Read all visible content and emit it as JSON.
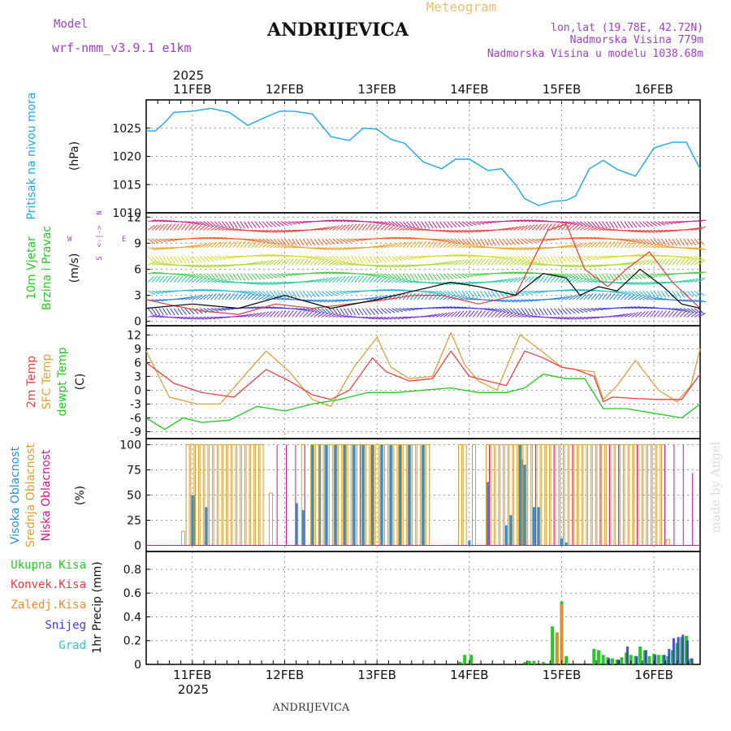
{
  "header": {
    "model_label": "Model",
    "model_name": "wrf-nmm_v3.9.1 e1km",
    "title": "ANDRIJEVICA",
    "meteogram_label": "Meteogram",
    "lonlat": "lon,lat (19.78E, 42.72N)",
    "elevation": "Nadmorska Visina 779m",
    "model_elevation": "Nadmorska Visina u modelu 1038.68m"
  },
  "top_year": "2025",
  "bottom_year": "2025",
  "footer_title": "ANDRIJEVICA",
  "watermark": "made by Angel",
  "colors": {
    "pressure": "#1fa8e6",
    "wind_speed": "#000000",
    "gust": "#e63b3b",
    "temp2m": "#e64545",
    "sfc_temp": "#dfa040",
    "dewpoint": "#1ec81e",
    "high_cloud": "#2b8fe0",
    "mid_cloud": "#d9a030",
    "low_cloud": "#d01890",
    "total_precip": "#28c828",
    "conv_precip": "#e83c3c",
    "frz_precip": "#f08a30",
    "snow": "#3b3bd8",
    "graupel": "#28c8c8",
    "purple_text": "#a040c8"
  },
  "panel_labels": {
    "pressure": [
      "Pritisak na nivou mora"
    ],
    "pressure_unit": "(hPa)",
    "wind": [
      "10m Vjetar",
      "Brzina i Pravac"
    ],
    "wind_unit": "(m/s)",
    "wind_compass": [
      "N",
      "<-|->",
      "S",
      "W",
      "E"
    ],
    "temp": [
      "2m Temp",
      "SFC Temp",
      "dewpt Temp"
    ],
    "temp_unit": "(C)",
    "cloud": [
      "Visoka Oblacnost",
      "Srednja Oblacnost",
      "Niska Oblacnost"
    ],
    "cloud_unit": "(%)",
    "precip_legend": [
      "Ukupna Kisa",
      "Konvek.Kisa",
      "Zaledj.Kisa",
      "Snijeg",
      "Grad"
    ],
    "precip_unit": "1hr Precip (mm)"
  },
  "chart_data": [
    {
      "type": "line",
      "panel": "pressure",
      "x_unit": "days from 10FEB 12:00",
      "xlim": [
        0,
        6.0
      ],
      "x_ticks": [
        "11FEB",
        "12FEB",
        "13FEB",
        "14FEB",
        "15FEB",
        "16FEB"
      ],
      "ylim": [
        1010,
        1030
      ],
      "yticks": [
        1010,
        1015,
        1020,
        1025
      ],
      "grid": true,
      "series": [
        {
          "name": "Pritisak na nivou mora",
          "x": [
            0,
            0.1,
            0.2,
            0.3,
            0.5,
            0.7,
            0.9,
            1.1,
            1.3,
            1.45,
            1.6,
            1.8,
            2.0,
            2.2,
            2.35,
            2.5,
            2.65,
            2.8,
            3.0,
            3.2,
            3.35,
            3.5,
            3.7,
            3.85,
            4.0,
            4.1,
            4.25,
            4.4,
            4.55,
            4.65,
            4.8,
            4.95,
            5.1,
            5.3,
            5.5,
            5.7,
            5.85,
            6.0
          ],
          "y": [
            1024.5,
            1024.5,
            1026,
            1027.8,
            1028,
            1028.5,
            1027.8,
            1025.5,
            1027,
            1028,
            1028,
            1027.5,
            1023.5,
            1022.8,
            1025,
            1024.8,
            1023,
            1022.3,
            1019,
            1017.8,
            1019.5,
            1019.5,
            1017.5,
            1017.8,
            1015,
            1012.5,
            1011.3,
            1012,
            1012.2,
            1013,
            1017.8,
            1019.3,
            1017.7,
            1016.5,
            1021.5,
            1022.5,
            1022.5,
            1017.8
          ]
        }
      ]
    },
    {
      "type": "line",
      "panel": "wind",
      "ylim": [
        -0.5,
        12.5
      ],
      "yticks": [
        0,
        3,
        6,
        9,
        12
      ],
      "grid": true,
      "series": [
        {
          "name": "speed",
          "x": [
            0,
            0.5,
            1.0,
            1.5,
            2.0,
            2.5,
            2.9,
            3.1,
            3.3,
            3.6,
            4.0,
            4.3,
            4.55,
            4.7,
            4.9,
            5.1,
            5.35,
            5.6,
            5.8,
            6.0
          ],
          "y": [
            1.5,
            2.0,
            1.5,
            3.0,
            1.5,
            2.5,
            3.5,
            4.0,
            4.5,
            4.0,
            3.0,
            5.5,
            5.0,
            3.0,
            4.0,
            3.5,
            6.0,
            4.0,
            2.0,
            1.5
          ]
        },
        {
          "name": "gust",
          "x": [
            0,
            0.3,
            0.6,
            1.0,
            1.4,
            1.8,
            2.2,
            2.6,
            2.9,
            3.2,
            3.6,
            4.0,
            4.35,
            4.55,
            4.75,
            5.0,
            5.2,
            5.45,
            5.7,
            6.0
          ],
          "y": [
            2.5,
            1.8,
            1.2,
            0.8,
            2.0,
            1.5,
            2.0,
            2.5,
            3.0,
            3.0,
            2.0,
            3.0,
            10.5,
            11.2,
            6.0,
            4.0,
            6.0,
            8.0,
            4.5,
            1.5
          ]
        }
      ],
      "arrow_levels": [
        0,
        1,
        2,
        3,
        4,
        5,
        6,
        7,
        8,
        9,
        10,
        11
      ]
    },
    {
      "type": "line",
      "panel": "temperature",
      "ylim": [
        -10.5,
        14
      ],
      "yticks": [
        -9,
        -6,
        -3,
        0,
        3,
        6,
        9,
        12
      ],
      "grid": true,
      "series": [
        {
          "name": "2m Temp",
          "x": [
            0,
            0.3,
            0.6,
            0.95,
            1.3,
            1.55,
            1.8,
            2.0,
            2.2,
            2.45,
            2.6,
            2.85,
            3.1,
            3.3,
            3.5,
            3.7,
            3.9,
            4.1,
            4.3,
            4.5,
            4.65,
            4.85,
            4.95,
            5.05,
            5.3,
            5.55,
            5.8,
            6.0
          ],
          "y": [
            6.0,
            1.5,
            -0.5,
            -1.5,
            4.5,
            2.0,
            -1.0,
            -2.0,
            0.0,
            7.0,
            4.0,
            2.0,
            2.5,
            8.5,
            3.0,
            2.0,
            1.0,
            8.5,
            7.0,
            5.0,
            4.5,
            3.0,
            -2.5,
            -1.5,
            -1.8,
            -2.0,
            -2.0,
            3.5
          ]
        },
        {
          "name": "SFC Temp",
          "x": [
            0,
            0.25,
            0.55,
            0.8,
            1.1,
            1.3,
            1.55,
            1.8,
            2.0,
            2.25,
            2.5,
            2.65,
            2.85,
            3.1,
            3.3,
            3.45,
            3.6,
            3.8,
            4.05,
            4.25,
            4.5,
            4.65,
            4.85,
            4.95,
            5.1,
            5.3,
            5.55,
            5.75,
            5.9,
            6.0
          ],
          "y": [
            8.5,
            -1.5,
            -3.0,
            -3.0,
            4.0,
            8.5,
            4.0,
            -2.0,
            -3.5,
            5.0,
            11.5,
            5.0,
            2.5,
            3.0,
            12.5,
            5.5,
            2.0,
            0.0,
            12.0,
            9.0,
            5.0,
            4.5,
            4.0,
            -2.0,
            1.0,
            6.5,
            0.0,
            -2.5,
            1.0,
            9.0
          ]
        },
        {
          "name": "dewpt Temp",
          "x": [
            0,
            0.2,
            0.4,
            0.6,
            0.9,
            1.2,
            1.5,
            1.8,
            2.1,
            2.4,
            2.7,
            3.0,
            3.3,
            3.6,
            3.9,
            4.1,
            4.3,
            4.55,
            4.75,
            4.95,
            5.2,
            5.5,
            5.8,
            6.0
          ],
          "y": [
            -6.0,
            -8.5,
            -6.0,
            -7.0,
            -6.5,
            -3.5,
            -4.5,
            -3.0,
            -2.0,
            -0.5,
            -0.5,
            0.0,
            0.5,
            -0.5,
            -0.5,
            0.5,
            3.5,
            2.5,
            2.5,
            -4.0,
            -4.0,
            -5.0,
            -6.0,
            -3.0
          ]
        }
      ]
    },
    {
      "type": "bar",
      "panel": "cloud",
      "ylim": [
        -6,
        106
      ],
      "yticks": [
        0,
        25,
        50,
        75,
        100
      ],
      "grid": true,
      "series": [
        {
          "name": "Visoka Oblacnost",
          "x": [
            0.5,
            0.52,
            0.65,
            1.63,
            1.7,
            1.8,
            1.88,
            1.95,
            2.05,
            2.15,
            2.25,
            2.35,
            2.45,
            2.55,
            2.65,
            2.75,
            2.85,
            3.0,
            3.5,
            3.7,
            3.9,
            3.95,
            4.05,
            4.07,
            4.1,
            4.2,
            4.25,
            4.5,
            4.55
          ],
          "y": [
            50,
            50,
            38,
            42,
            35,
            100,
            100,
            100,
            100,
            100,
            100,
            100,
            100,
            100,
            100,
            100,
            100,
            100,
            5,
            63,
            20,
            30,
            100,
            85,
            80,
            38,
            38,
            7,
            3
          ]
        },
        {
          "name": "Srednja Oblacnost",
          "x": [
            0.4,
            0.45,
            0.5,
            0.55,
            0.6,
            0.65,
            0.7,
            0.75,
            0.8,
            0.85,
            0.9,
            0.95,
            1.0,
            1.05,
            1.1,
            1.15,
            1.2,
            1.25,
            1.35,
            1.7,
            1.8,
            1.85,
            1.9,
            1.95,
            2.0,
            2.05,
            2.1,
            2.15,
            2.2,
            2.25,
            2.3,
            2.35,
            2.4,
            2.45,
            2.5,
            2.55,
            2.6,
            2.65,
            2.7,
            2.75,
            2.8,
            2.85,
            2.9,
            2.95,
            3.0,
            3.05,
            3.4,
            3.45,
            3.55,
            3.7,
            3.75,
            3.8,
            3.85,
            3.9,
            3.95,
            4.0,
            4.05,
            4.1,
            4.15,
            4.2,
            4.25,
            4.3,
            4.35,
            4.4,
            4.45,
            4.5,
            4.55,
            4.6,
            4.65,
            4.7,
            4.75,
            4.8,
            4.85,
            4.9,
            4.95,
            5.0,
            5.05,
            5.1,
            5.15,
            5.2,
            5.25,
            5.3,
            5.35,
            5.4,
            5.45,
            5.5,
            5.55,
            5.6,
            5.65
          ],
          "y": [
            14,
            100,
            100,
            100,
            100,
            100,
            100,
            100,
            100,
            100,
            100,
            100,
            100,
            100,
            100,
            100,
            100,
            100,
            52,
            100,
            100,
            100,
            100,
            100,
            100,
            100,
            100,
            100,
            100,
            100,
            100,
            100,
            100,
            100,
            100,
            100,
            100,
            100,
            100,
            100,
            100,
            100,
            100,
            100,
            100,
            100,
            100,
            100,
            100,
            100,
            100,
            100,
            100,
            100,
            100,
            100,
            100,
            100,
            100,
            100,
            100,
            100,
            100,
            100,
            100,
            100,
            100,
            100,
            100,
            100,
            100,
            100,
            100,
            100,
            100,
            100,
            100,
            100,
            100,
            100,
            100,
            100,
            100,
            100,
            100,
            100,
            100,
            100,
            6
          ]
        },
        {
          "name": "Niska Oblacnost",
          "x": [
            1.4,
            1.5,
            1.6,
            1.7,
            2.3,
            3.7,
            4.2,
            4.4,
            4.6,
            4.9,
            5.0,
            5.1,
            5.3,
            5.6,
            5.7,
            5.8,
            5.9
          ],
          "y": [
            100,
            100,
            100,
            100,
            100,
            100,
            100,
            100,
            100,
            100,
            100,
            100,
            100,
            100,
            100,
            100,
            72
          ]
        }
      ]
    },
    {
      "type": "bar",
      "panel": "precipitation",
      "ylim": [
        0,
        0.95
      ],
      "yticks": [
        0,
        0.2,
        0.4,
        0.6,
        0.8
      ],
      "grid": true,
      "series": [
        {
          "name": "Ukupna Kisa",
          "x": [
            3.4,
            3.45,
            3.52,
            4.1,
            4.15,
            4.2,
            4.3,
            4.4,
            4.45,
            4.5,
            4.55,
            4.85,
            4.9,
            4.95,
            5.0,
            5.05,
            5.1,
            5.15,
            5.2,
            5.25,
            5.3,
            5.35,
            5.4,
            5.45,
            5.5,
            5.55,
            5.6,
            5.65,
            5.7,
            5.75,
            5.8,
            5.85,
            5.9
          ],
          "y": [
            0.02,
            0.08,
            0.08,
            0.02,
            0.03,
            0.03,
            0.02,
            0.32,
            0.27,
            0.53,
            0.07,
            0.13,
            0.12,
            0.08,
            0.06,
            0.05,
            0.04,
            0.06,
            0.1,
            0.08,
            0.07,
            0.15,
            0.12,
            0.07,
            0.09,
            0.08,
            0.08,
            0.07,
            0.12,
            0.18,
            0.23,
            0.24,
            0.05
          ]
        },
        {
          "name": "Konvek.Kisa",
          "x": [],
          "y": []
        },
        {
          "name": "Zaledj.Kisa",
          "x": [
            4.45,
            4.5
          ],
          "y": [
            0.27,
            0.51
          ]
        },
        {
          "name": "Snijeg",
          "x": [
            5.0,
            5.1,
            5.2,
            5.3,
            5.4,
            5.5,
            5.6,
            5.65,
            5.7,
            5.75,
            5.8,
            5.85,
            5.9
          ],
          "y": [
            0.05,
            0.04,
            0.15,
            0.07,
            0.12,
            0.08,
            0.08,
            0.13,
            0.22,
            0.23,
            0.25,
            0.2,
            0.05
          ]
        },
        {
          "name": "Grad",
          "x": [],
          "y": []
        }
      ]
    }
  ]
}
